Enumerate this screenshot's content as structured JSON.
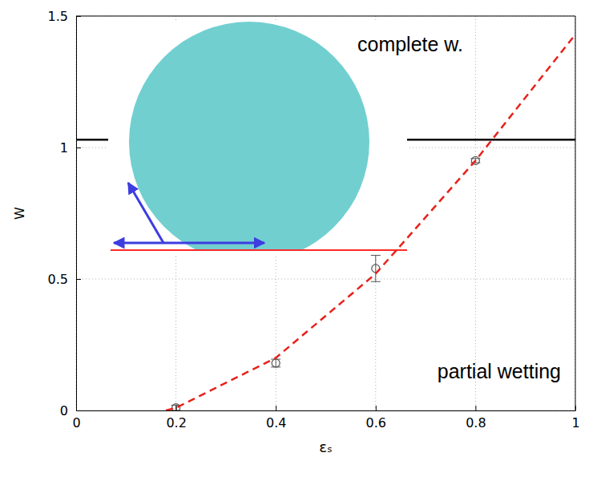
{
  "chart_data": {
    "type": "scatter",
    "xlabel": "εₛ",
    "ylabel": "W",
    "xlim": [
      0,
      1
    ],
    "ylim": [
      0,
      1.5
    ],
    "xticks": [
      0,
      0.2,
      0.4,
      0.6,
      0.8,
      1
    ],
    "yticks": [
      0,
      0.5,
      1,
      1.5
    ],
    "grid": true,
    "series": [
      {
        "type": "scatter",
        "marker": "circle",
        "color": "#555555",
        "x": [
          0.2,
          0.4,
          0.6,
          0.8
        ],
        "values": [
          0.01,
          0.18,
          0.54,
          0.95
        ],
        "errors": [
          0.01,
          0.015,
          0.05,
          0.008
        ]
      },
      {
        "type": "line",
        "line_style": "dashed",
        "color": "#e8211c",
        "x": [
          0.18,
          0.2,
          0.4,
          0.6,
          0.8,
          1
        ],
        "values": [
          0,
          0.01,
          0.2,
          0.52,
          0.95,
          1.43
        ]
      },
      {
        "type": "line",
        "line_style": "solid",
        "color": "#000000",
        "x": [
          0,
          1
        ],
        "values": [
          1.03,
          1.03
        ]
      }
    ],
    "annotations": [
      "complete w.",
      "partial wetting"
    ]
  }
}
